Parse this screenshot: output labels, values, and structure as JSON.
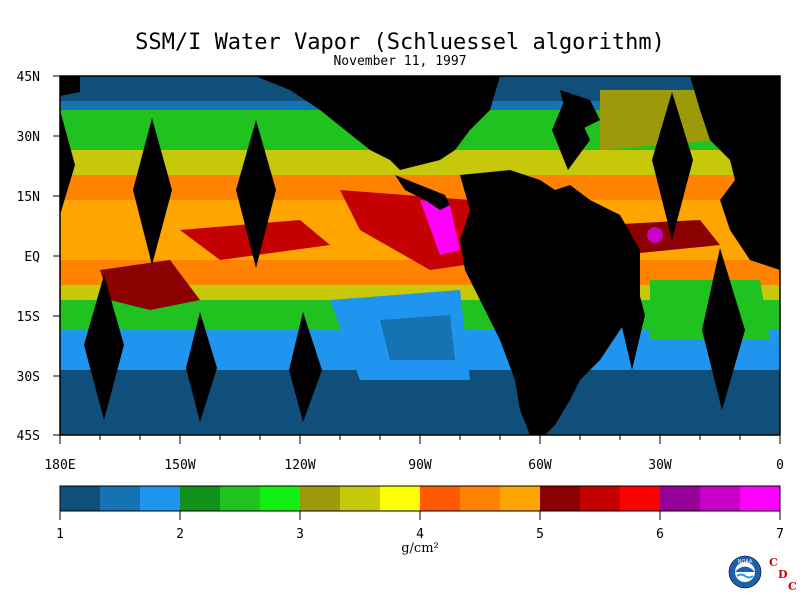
{
  "header": {
    "title": "SSM/I Water Vapor (Schluessel algorithm)",
    "date": "November 11, 1997"
  },
  "map": {
    "lat_labels": [
      "45N",
      "30N",
      "15N",
      "EQ",
      "15S",
      "30S",
      "45S"
    ],
    "lon_labels": [
      "180E",
      "150W",
      "120W",
      "90W",
      "60W",
      "30W",
      "0"
    ],
    "land_color": "#000000",
    "swath_gap_color": "#000000"
  },
  "colorbar": {
    "colors": [
      "#0f4f7a",
      "#1573b4",
      "#1f95f0",
      "#13921b",
      "#1fc21f",
      "#11f011",
      "#9c9a0a",
      "#c8c80a",
      "#ffff00",
      "#ff5a00",
      "#ff8200",
      "#ffa500",
      "#8b0000",
      "#c40000",
      "#ff0000",
      "#960096",
      "#c800c8",
      "#ff00ff"
    ],
    "tick_labels": [
      "1",
      "2",
      "3",
      "4",
      "5",
      "6",
      "7"
    ],
    "unit": "g/cm²"
  },
  "footer": {
    "logo_text": "NOAA",
    "cdc_letters": [
      "C",
      "D",
      "C"
    ]
  }
}
